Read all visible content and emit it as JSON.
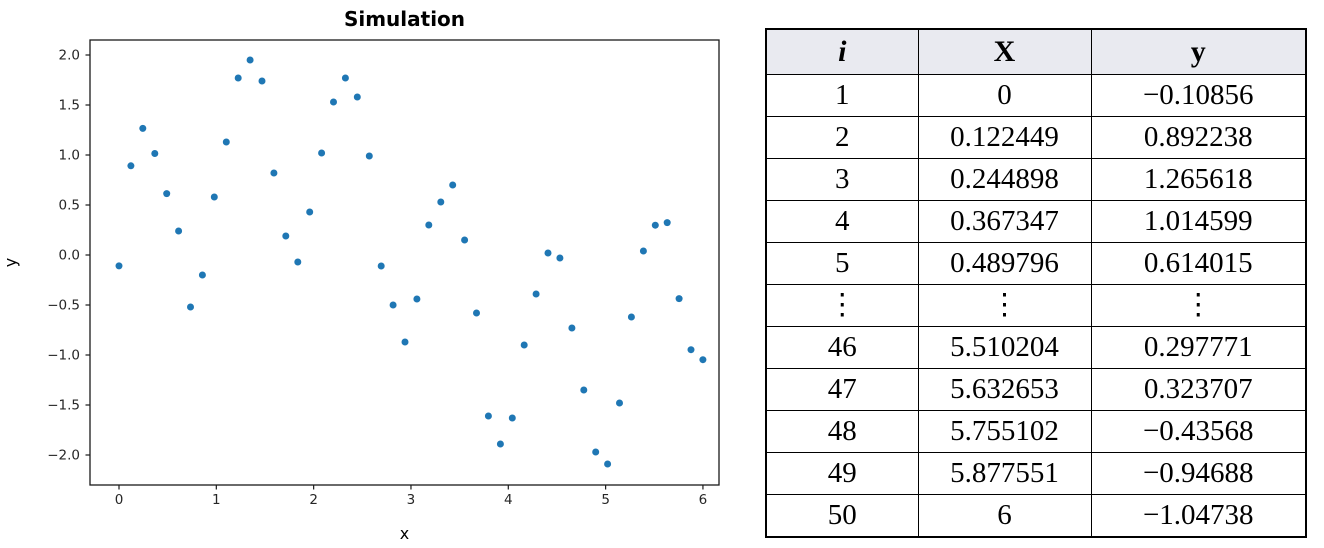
{
  "chart_data": {
    "type": "scatter",
    "title": "Simulation",
    "xlabel": "x",
    "ylabel": "y",
    "marker_color": "#1f77b4",
    "frame_color": "#1a1a1a",
    "tick_label_color": "#262626",
    "grid": false,
    "legend": null,
    "xlim": [
      -0.298,
      6.165
    ],
    "ylim": [
      -2.3,
      2.15
    ],
    "xticks": [
      0,
      1,
      2,
      3,
      4,
      5,
      6
    ],
    "yticks": [
      -2.0,
      -1.5,
      -1.0,
      -0.5,
      0.0,
      0.5,
      1.0,
      1.5,
      2.0
    ],
    "x": [
      0,
      0.122449,
      0.244898,
      0.367347,
      0.489796,
      0.612245,
      0.734694,
      0.857143,
      0.979592,
      1.102041,
      1.22449,
      1.346939,
      1.469388,
      1.591837,
      1.714286,
      1.836735,
      1.959184,
      2.081633,
      2.204082,
      2.326531,
      2.44898,
      2.571429,
      2.693878,
      2.816327,
      2.938776,
      3.061224,
      3.183673,
      3.306122,
      3.428571,
      3.55102,
      3.673469,
      3.795918,
      3.918367,
      4.040816,
      4.163265,
      4.285714,
      4.408163,
      4.530612,
      4.653061,
      4.77551,
      4.897959,
      5.020408,
      5.142857,
      5.265306,
      5.387755,
      5.510204,
      5.632653,
      5.755102,
      5.877551,
      6
    ],
    "y": [
      -0.10856,
      0.892238,
      1.265618,
      1.014599,
      0.614015,
      0.24,
      -0.52,
      -0.2,
      0.58,
      1.13,
      1.77,
      1.95,
      1.74,
      0.82,
      0.19,
      -0.07,
      0.43,
      1.02,
      1.53,
      1.77,
      1.58,
      0.99,
      -0.11,
      -0.5,
      -0.87,
      -0.44,
      0.3,
      0.53,
      0.7,
      0.15,
      -0.58,
      -1.61,
      -1.89,
      -1.63,
      -0.9,
      -0.39,
      0.02,
      -0.03,
      -0.73,
      -1.35,
      -1.97,
      -2.09,
      -1.48,
      -0.62,
      0.04,
      0.297771,
      0.323707,
      -0.43568,
      -0.94688,
      -1.04738
    ]
  },
  "table": {
    "headers": [
      "i",
      "X",
      "y"
    ],
    "rows": [
      [
        "1",
        "0",
        "−0.10856"
      ],
      [
        "2",
        "0.122449",
        "0.892238"
      ],
      [
        "3",
        "0.244898",
        "1.265618"
      ],
      [
        "4",
        "0.367347",
        "1.014599"
      ],
      [
        "5",
        "0.489796",
        "0.614015"
      ],
      [
        "⋮",
        "⋮",
        "⋮"
      ],
      [
        "46",
        "5.510204",
        "0.297771"
      ],
      [
        "47",
        "5.632653",
        "0.323707"
      ],
      [
        "48",
        "5.755102",
        "−0.43568"
      ],
      [
        "49",
        "5.877551",
        "−0.94688"
      ],
      [
        "50",
        "6",
        "−1.04738"
      ]
    ],
    "header_bg": "#e9eaf0"
  }
}
